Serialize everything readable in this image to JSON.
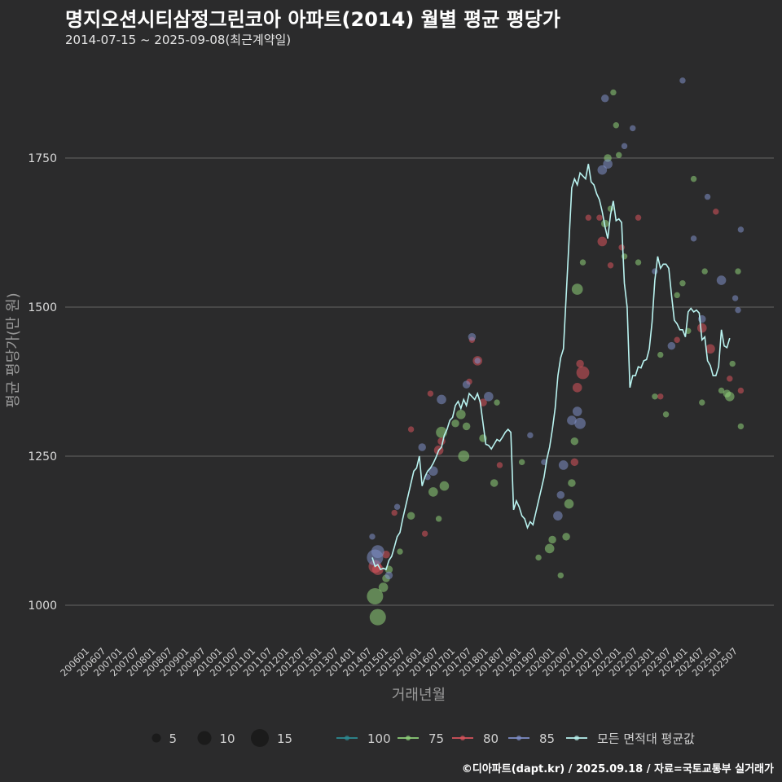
{
  "header": {
    "title": "명지오션시티삼정그린코아 아파트(2014) 월별 평균 평당가",
    "subtitle": "2014-07-15 ~ 2025-09-08(최근계약일)"
  },
  "footer": {
    "credit": "©디아파트(dapt.kr) / 2025.09.18 / 자료=국토교통부 실거래가"
  },
  "colors": {
    "background": "#2b2b2c",
    "grid": "#5a5a5a",
    "s100": "#2d8c94",
    "s75": "#8fd27a",
    "s80": "#d9545c",
    "s85": "#7f8fc9",
    "avg": "#b9f3f0"
  },
  "chart_data": {
    "type": "scatter",
    "title": "명지오션시티삼정그린코아 아파트(2014) 월별 평균 평당가",
    "xlabel": "거래년월",
    "ylabel": "평균 평당가(만 원)",
    "yticks": [
      1000,
      1250,
      1500,
      1750
    ],
    "ylim": [
      950,
      1900
    ],
    "xlim": [
      "2006-01",
      "2025-07"
    ],
    "xticks": [
      "200601",
      "200607",
      "200701",
      "200707",
      "200801",
      "200807",
      "200901",
      "200907",
      "201001",
      "201007",
      "201101",
      "201107",
      "201201",
      "201207",
      "201301",
      "201307",
      "201401",
      "201407",
      "201501",
      "201507",
      "201601",
      "201607",
      "201701",
      "201707",
      "201801",
      "201807",
      "201901",
      "201907",
      "202001",
      "202007",
      "202101",
      "202107",
      "202201",
      "202207",
      "202301",
      "202307",
      "202401",
      "202407",
      "202501",
      "202507"
    ],
    "size_legend": {
      "label": "",
      "sizes": [
        5,
        10,
        15
      ]
    },
    "series_legend": [
      "100",
      "75",
      "80",
      "85",
      "모든 면적대 평균값"
    ],
    "series": [
      {
        "name": "75",
        "points": [
          [
            "2014-08",
            1015,
            8
          ],
          [
            "2014-09",
            980,
            8
          ],
          [
            "2014-11",
            1030,
            4
          ],
          [
            "2014-12",
            1045,
            3
          ],
          [
            "2015-01",
            1060,
            3
          ],
          [
            "2015-05",
            1090,
            2
          ],
          [
            "2015-09",
            1150,
            3
          ],
          [
            "2016-05",
            1190,
            4
          ],
          [
            "2016-07",
            1145,
            2
          ],
          [
            "2016-08",
            1290,
            5
          ],
          [
            "2016-09",
            1200,
            4
          ],
          [
            "2017-01",
            1305,
            3
          ],
          [
            "2017-03",
            1320,
            4
          ],
          [
            "2017-04",
            1250,
            5
          ],
          [
            "2017-05",
            1300,
            3
          ],
          [
            "2017-11",
            1280,
            3
          ],
          [
            "2018-03",
            1205,
            3
          ],
          [
            "2018-04",
            1340,
            2
          ],
          [
            "2019-01",
            1240,
            2
          ],
          [
            "2019-07",
            1080,
            2
          ],
          [
            "2019-11",
            1095,
            4
          ],
          [
            "2019-12",
            1110,
            3
          ],
          [
            "2020-03",
            1050,
            2
          ],
          [
            "2020-05",
            1115,
            3
          ],
          [
            "2020-06",
            1170,
            4
          ],
          [
            "2020-07",
            1205,
            3
          ],
          [
            "2020-08",
            1275,
            3
          ],
          [
            "2020-09",
            1530,
            5
          ],
          [
            "2020-11",
            1575,
            2
          ],
          [
            "2021-07",
            1640,
            3
          ],
          [
            "2021-08",
            1750,
            3
          ],
          [
            "2021-09",
            1665,
            2
          ],
          [
            "2021-10",
            1860,
            2
          ],
          [
            "2021-11",
            1805,
            2
          ],
          [
            "2021-12",
            1755,
            2
          ],
          [
            "2022-02",
            1585,
            2
          ],
          [
            "2022-07",
            1575,
            2
          ],
          [
            "2023-01",
            1350,
            2
          ],
          [
            "2023-03",
            1420,
            2
          ],
          [
            "2023-05",
            1320,
            2
          ],
          [
            "2023-09",
            1520,
            2
          ],
          [
            "2023-11",
            1540,
            2
          ],
          [
            "2024-01",
            1460,
            2
          ],
          [
            "2024-03",
            1715,
            2
          ],
          [
            "2024-06",
            1340,
            2
          ],
          [
            "2024-07",
            1560,
            2
          ],
          [
            "2025-01",
            1360,
            2
          ],
          [
            "2025-03",
            1355,
            3
          ],
          [
            "2025-04",
            1350,
            4
          ],
          [
            "2025-05",
            1405,
            2
          ],
          [
            "2025-07",
            1560,
            2
          ],
          [
            "2025-08",
            1300,
            2
          ]
        ]
      },
      {
        "name": "80",
        "points": [
          [
            "2014-08",
            1065,
            6
          ],
          [
            "2014-09",
            1060,
            5
          ],
          [
            "2014-12",
            1085,
            3
          ],
          [
            "2015-03",
            1155,
            2
          ],
          [
            "2015-09",
            1295,
            2
          ],
          [
            "2016-02",
            1120,
            2
          ],
          [
            "2016-04",
            1355,
            2
          ],
          [
            "2016-07",
            1260,
            4
          ],
          [
            "2016-08",
            1275,
            3
          ],
          [
            "2017-06",
            1375,
            2
          ],
          [
            "2017-07",
            1445,
            2
          ],
          [
            "2017-09",
            1410,
            4
          ],
          [
            "2017-11",
            1340,
            3
          ],
          [
            "2018-05",
            1235,
            2
          ],
          [
            "2020-08",
            1240,
            3
          ],
          [
            "2020-09",
            1365,
            4
          ],
          [
            "2020-10",
            1405,
            3
          ],
          [
            "2020-11",
            1390,
            6
          ],
          [
            "2021-01",
            1650,
            2
          ],
          [
            "2021-05",
            1650,
            2
          ],
          [
            "2021-06",
            1610,
            4
          ],
          [
            "2021-09",
            1570,
            2
          ],
          [
            "2022-01",
            1600,
            2
          ],
          [
            "2022-07",
            1650,
            2
          ],
          [
            "2023-03",
            1350,
            2
          ],
          [
            "2023-09",
            1445,
            2
          ],
          [
            "2024-06",
            1465,
            4
          ],
          [
            "2024-09",
            1430,
            4
          ],
          [
            "2024-11",
            1660,
            2
          ],
          [
            "2025-04",
            1380,
            2
          ],
          [
            "2025-08",
            1360,
            2
          ]
        ]
      },
      {
        "name": "85",
        "points": [
          [
            "2014-08",
            1080,
            8
          ],
          [
            "2014-09",
            1090,
            6
          ],
          [
            "2014-07",
            1115,
            2
          ],
          [
            "2015-01",
            1050,
            3
          ],
          [
            "2015-04",
            1165,
            2
          ],
          [
            "2016-01",
            1265,
            3
          ],
          [
            "2016-03",
            1215,
            2
          ],
          [
            "2016-05",
            1225,
            4
          ],
          [
            "2016-08",
            1345,
            4
          ],
          [
            "2017-05",
            1370,
            3
          ],
          [
            "2017-07",
            1450,
            3
          ],
          [
            "2017-09",
            1410,
            2
          ],
          [
            "2018-01",
            1350,
            4
          ],
          [
            "2019-04",
            1285,
            2
          ],
          [
            "2019-09",
            1240,
            2
          ],
          [
            "2020-02",
            1150,
            4
          ],
          [
            "2020-03",
            1185,
            3
          ],
          [
            "2020-04",
            1235,
            4
          ],
          [
            "2020-07",
            1310,
            4
          ],
          [
            "2020-09",
            1325,
            4
          ],
          [
            "2020-10",
            1305,
            5
          ],
          [
            "2021-06",
            1730,
            4
          ],
          [
            "2021-07",
            1850,
            3
          ],
          [
            "2021-08",
            1740,
            4
          ],
          [
            "2022-02",
            1770,
            2
          ],
          [
            "2022-05",
            1800,
            2
          ],
          [
            "2023-01",
            1560,
            2
          ],
          [
            "2023-07",
            1435,
            3
          ],
          [
            "2023-11",
            1880,
            2
          ],
          [
            "2024-03",
            1615,
            2
          ],
          [
            "2024-06",
            1480,
            3
          ],
          [
            "2024-08",
            1685,
            2
          ],
          [
            "2025-01",
            1545,
            4
          ],
          [
            "2025-06",
            1515,
            2
          ],
          [
            "2025-07",
            1495,
            2
          ],
          [
            "2025-08",
            1630,
            2
          ]
        ]
      },
      {
        "name": "100",
        "points": []
      },
      {
        "name": "모든 면적대 평균값",
        "type": "line",
        "points": [
          [
            "2014-07",
            1080
          ],
          [
            "2014-08",
            1065
          ],
          [
            "2014-09",
            1068
          ],
          [
            "2014-10",
            1060
          ],
          [
            "2014-11",
            1062
          ],
          [
            "2014-12",
            1060
          ],
          [
            "2015-01",
            1075
          ],
          [
            "2015-02",
            1082
          ],
          [
            "2015-03",
            1098
          ],
          [
            "2015-04",
            1115
          ],
          [
            "2015-05",
            1122
          ],
          [
            "2015-06",
            1145
          ],
          [
            "2015-07",
            1165
          ],
          [
            "2015-08",
            1185
          ],
          [
            "2015-09",
            1205
          ],
          [
            "2015-10",
            1225
          ],
          [
            "2015-11",
            1230
          ],
          [
            "2015-12",
            1250
          ],
          [
            "2016-01",
            1200
          ],
          [
            "2016-02",
            1215
          ],
          [
            "2016-03",
            1225
          ],
          [
            "2016-04",
            1230
          ],
          [
            "2016-05",
            1238
          ],
          [
            "2016-06",
            1248
          ],
          [
            "2016-07",
            1260
          ],
          [
            "2016-08",
            1265
          ],
          [
            "2016-09",
            1285
          ],
          [
            "2016-10",
            1295
          ],
          [
            "2016-11",
            1310
          ],
          [
            "2016-12",
            1315
          ],
          [
            "2017-01",
            1335
          ],
          [
            "2017-02",
            1342
          ],
          [
            "2017-03",
            1330
          ],
          [
            "2017-04",
            1345
          ],
          [
            "2017-05",
            1335
          ],
          [
            "2017-06",
            1355
          ],
          [
            "2017-07",
            1350
          ],
          [
            "2017-08",
            1345
          ],
          [
            "2017-09",
            1355
          ],
          [
            "2017-10",
            1340
          ],
          [
            "2017-11",
            1305
          ],
          [
            "2017-12",
            1270
          ],
          [
            "2018-01",
            1268
          ],
          [
            "2018-02",
            1262
          ],
          [
            "2018-03",
            1270
          ],
          [
            "2018-04",
            1278
          ],
          [
            "2018-05",
            1275
          ],
          [
            "2018-06",
            1282
          ],
          [
            "2018-07",
            1290
          ],
          [
            "2018-08",
            1295
          ],
          [
            "2018-09",
            1290
          ],
          [
            "2018-10",
            1160
          ],
          [
            "2018-11",
            1175
          ],
          [
            "2018-12",
            1165
          ],
          [
            "2019-01",
            1150
          ],
          [
            "2019-02",
            1145
          ],
          [
            "2019-03",
            1130
          ],
          [
            "2019-04",
            1140
          ],
          [
            "2019-05",
            1135
          ],
          [
            "2019-06",
            1155
          ],
          [
            "2019-07",
            1175
          ],
          [
            "2019-08",
            1195
          ],
          [
            "2019-09",
            1215
          ],
          [
            "2019-10",
            1245
          ],
          [
            "2019-11",
            1265
          ],
          [
            "2019-12",
            1295
          ],
          [
            "2020-01",
            1330
          ],
          [
            "2020-02",
            1385
          ],
          [
            "2020-03",
            1415
          ],
          [
            "2020-04",
            1430
          ],
          [
            "2020-05",
            1520
          ],
          [
            "2020-06",
            1610
          ],
          [
            "2020-07",
            1700
          ],
          [
            "2020-08",
            1715
          ],
          [
            "2020-09",
            1705
          ],
          [
            "2020-10",
            1725
          ],
          [
            "2020-11",
            1720
          ],
          [
            "2020-12",
            1715
          ],
          [
            "2021-01",
            1740
          ],
          [
            "2021-02",
            1710
          ],
          [
            "2021-03",
            1705
          ],
          [
            "2021-04",
            1690
          ],
          [
            "2021-05",
            1680
          ],
          [
            "2021-06",
            1660
          ],
          [
            "2021-07",
            1635
          ],
          [
            "2021-08",
            1615
          ],
          [
            "2021-09",
            1655
          ],
          [
            "2021-10",
            1678
          ],
          [
            "2021-11",
            1645
          ],
          [
            "2021-12",
            1648
          ],
          [
            "2022-01",
            1642
          ],
          [
            "2022-02",
            1540
          ],
          [
            "2022-03",
            1500
          ],
          [
            "2022-04",
            1365
          ],
          [
            "2022-05",
            1385
          ],
          [
            "2022-06",
            1385
          ],
          [
            "2022-07",
            1400
          ],
          [
            "2022-08",
            1398
          ],
          [
            "2022-09",
            1410
          ],
          [
            "2022-10",
            1412
          ],
          [
            "2022-11",
            1430
          ],
          [
            "2022-12",
            1475
          ],
          [
            "2023-01",
            1545
          ],
          [
            "2023-02",
            1585
          ],
          [
            "2023-03",
            1565
          ],
          [
            "2023-04",
            1572
          ],
          [
            "2023-05",
            1572
          ],
          [
            "2023-06",
            1565
          ],
          [
            "2023-07",
            1520
          ],
          [
            "2023-08",
            1478
          ],
          [
            "2023-09",
            1472
          ],
          [
            "2023-10",
            1462
          ],
          [
            "2023-11",
            1462
          ],
          [
            "2023-12",
            1450
          ],
          [
            "2024-01",
            1492
          ],
          [
            "2024-02",
            1498
          ],
          [
            "2024-03",
            1492
          ],
          [
            "2024-04",
            1495
          ],
          [
            "2024-05",
            1490
          ],
          [
            "2024-06",
            1445
          ],
          [
            "2024-07",
            1450
          ],
          [
            "2024-08",
            1410
          ],
          [
            "2024-09",
            1402
          ],
          [
            "2024-10",
            1385
          ],
          [
            "2024-11",
            1385
          ],
          [
            "2024-12",
            1400
          ],
          [
            "2025-01",
            1462
          ],
          [
            "2025-02",
            1435
          ],
          [
            "2025-03",
            1432
          ],
          [
            "2025-04",
            1448
          ]
        ]
      }
    ]
  }
}
